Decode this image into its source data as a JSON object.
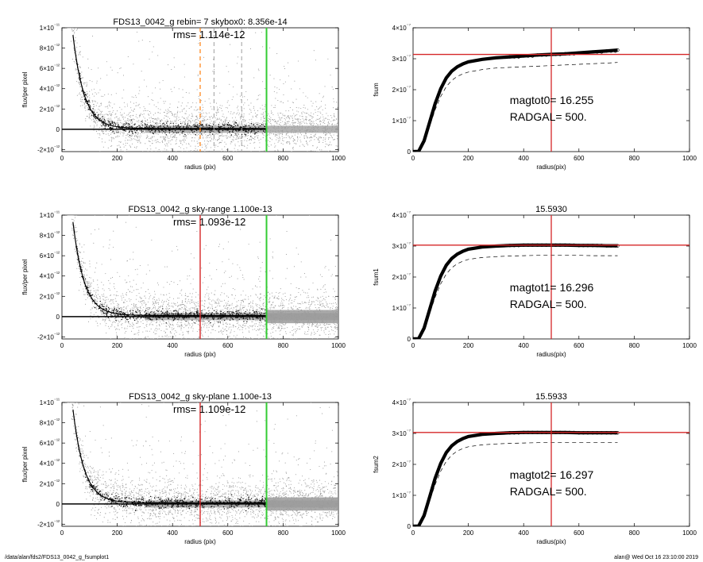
{
  "footer": {
    "left": "/data/alan/fds2/FDS13_0042_g_fsumplot1",
    "right": "alan@  Wed Oct 16 23:10:00 2019"
  },
  "colors": {
    "grey_points": "#9a9a9a",
    "black_points": "#111111",
    "red_line": "#d62728",
    "green_line": "#33cc33",
    "orange_dash": "#ff7f0e",
    "grey_dash": "#9e9e9e"
  },
  "chart_data": [
    {
      "type": "scatter",
      "panel": "left-1",
      "title": "FDS13_0042_g rebin= 7    skybox0:  8.356e-14",
      "annotation": "rms= 1.114e-12",
      "xlabel": "radius (pix)",
      "ylabel": "flux/per pixel",
      "xlim": [
        0,
        1000
      ],
      "ylim": [
        -2.2e-12,
        1e-11
      ],
      "xticks": [
        "0",
        "200",
        "400",
        "600",
        "800",
        "1000"
      ],
      "yticks": [
        {
          "value": 1e-11,
          "label": "1×10⁻¹¹"
        },
        {
          "value": 8e-12,
          "label": "8×10⁻¹²"
        },
        {
          "value": 6e-12,
          "label": "6×10⁻¹²"
        },
        {
          "value": 4e-12,
          "label": "4×10⁻¹²"
        },
        {
          "value": 2e-12,
          "label": "2×10⁻¹²"
        },
        {
          "value": 0,
          "label": "0"
        },
        {
          "value": -2e-12,
          "label": "-2×10⁻¹²"
        }
      ],
      "profile": {
        "amplitude": 2.5e-11,
        "scale": 40,
        "floor": 8e-14
      },
      "vlines": [
        {
          "x": 500,
          "style": "orange-dash"
        },
        {
          "x": 550,
          "style": "grey-dash"
        },
        {
          "x": 650,
          "style": "grey-dash"
        },
        {
          "x": 740,
          "style": "green"
        }
      ]
    },
    {
      "type": "line",
      "panel": "right-1",
      "title": "",
      "xlabel": "radius(pix)",
      "ylabel": "fsum",
      "xlim": [
        0,
        1000
      ],
      "ylim": [
        0,
        4e-07
      ],
      "xticks": [
        "0",
        "200",
        "400",
        "600",
        "800",
        "1000"
      ],
      "yticks": [
        {
          "value": 4e-07,
          "label": "4×10⁻⁷"
        },
        {
          "value": 3e-07,
          "label": "3×10⁻⁷"
        },
        {
          "value": 2e-07,
          "label": "2×10⁻⁷"
        },
        {
          "value": 1e-07,
          "label": "1×10⁻⁷"
        },
        {
          "value": 0,
          "label": "0"
        }
      ],
      "series": [
        {
          "style": "thick-black",
          "x": [
            0,
            20,
            40,
            60,
            80,
            100,
            120,
            140,
            160,
            180,
            200,
            250,
            300,
            350,
            400,
            450,
            500,
            550,
            600,
            650,
            700,
            740
          ],
          "y": [
            0,
            8e-10,
            3.5e-08,
            9.5e-08,
            1.55e-07,
            2.03e-07,
            2.38e-07,
            2.6e-07,
            2.74e-07,
            2.83e-07,
            2.9e-07,
            2.98e-07,
            3.03e-07,
            3.06e-07,
            3.09e-07,
            3.12e-07,
            3.14e-07,
            3.16e-07,
            3.19e-07,
            3.22e-07,
            3.25e-07,
            3.28e-07
          ]
        },
        {
          "style": "dashed",
          "x": [
            0,
            20,
            40,
            60,
            80,
            100,
            120,
            140,
            160,
            180,
            200,
            250,
            300,
            350,
            400,
            450,
            500,
            550,
            600,
            650,
            700,
            740
          ],
          "y": [
            0,
            5e-10,
            3e-08,
            8.2e-08,
            1.35e-07,
            1.78e-07,
            2.1e-07,
            2.3e-07,
            2.43e-07,
            2.51e-07,
            2.57e-07,
            2.65e-07,
            2.7e-07,
            2.72e-07,
            2.74e-07,
            2.76e-07,
            2.78e-07,
            2.8e-07,
            2.82e-07,
            2.84e-07,
            2.86e-07,
            2.88e-07
          ]
        }
      ],
      "hline": 3.14e-07,
      "vline": 500,
      "annotations": [
        "magtot0=  16.255",
        "RADGAL=    500."
      ]
    },
    {
      "type": "scatter",
      "panel": "left-2",
      "title": "FDS13_0042_g sky-range  1.100e-13",
      "annotation": "rms= 1.093e-12",
      "xlabel": "radius (pix)",
      "ylabel": "flux/per pixel",
      "xlim": [
        0,
        1000
      ],
      "ylim": [
        -2.2e-12,
        1e-11
      ],
      "xticks": [
        "0",
        "200",
        "400",
        "600",
        "800",
        "1000"
      ],
      "yticks": [
        {
          "value": 1e-11,
          "label": "1×10⁻¹¹"
        },
        {
          "value": 8e-12,
          "label": "8×10⁻¹²"
        },
        {
          "value": 6e-12,
          "label": "6×10⁻¹²"
        },
        {
          "value": 4e-12,
          "label": "4×10⁻¹²"
        },
        {
          "value": 2e-12,
          "label": "2×10⁻¹²"
        },
        {
          "value": 0,
          "label": "0"
        },
        {
          "value": -2e-12,
          "label": "-2×10⁻¹²"
        }
      ],
      "profile": {
        "amplitude": 2.5e-11,
        "scale": 40,
        "floor": 1.1e-13
      },
      "vlines": [
        {
          "x": 500,
          "style": "red"
        },
        {
          "x": 740,
          "style": "green"
        }
      ]
    },
    {
      "type": "line",
      "panel": "right-2",
      "title": "15.5930",
      "xlabel": "radius(pix)",
      "ylabel": "fsum1",
      "xlim": [
        0,
        1000
      ],
      "ylim": [
        0,
        4e-07
      ],
      "xticks": [
        "0",
        "200",
        "400",
        "600",
        "800",
        "1000"
      ],
      "yticks": [
        {
          "value": 4e-07,
          "label": "4×10⁻⁷"
        },
        {
          "value": 3e-07,
          "label": "3×10⁻⁷"
        },
        {
          "value": 2e-07,
          "label": "2×10⁻⁷"
        },
        {
          "value": 1e-07,
          "label": "1×10⁻⁷"
        },
        {
          "value": 0,
          "label": "0"
        }
      ],
      "series": [
        {
          "style": "thick-black",
          "x": [
            0,
            20,
            40,
            60,
            80,
            100,
            120,
            140,
            160,
            180,
            200,
            250,
            300,
            350,
            400,
            450,
            500,
            550,
            600,
            650,
            700,
            740
          ],
          "y": [
            0,
            8e-10,
            3.5e-08,
            9.5e-08,
            1.55e-07,
            2.03e-07,
            2.38e-07,
            2.6e-07,
            2.74e-07,
            2.83e-07,
            2.9e-07,
            2.97e-07,
            3e-07,
            3.02e-07,
            3.03e-07,
            3.03e-07,
            3.03e-07,
            3.03e-07,
            3.02e-07,
            3.02e-07,
            3.01e-07,
            3.01e-07
          ]
        },
        {
          "style": "dashed",
          "x": [
            0,
            20,
            40,
            60,
            80,
            100,
            120,
            140,
            160,
            180,
            200,
            250,
            300,
            350,
            400,
            450,
            500,
            550,
            600,
            650,
            700,
            740
          ],
          "y": [
            0,
            5e-10,
            3e-08,
            8.2e-08,
            1.35e-07,
            1.78e-07,
            2.1e-07,
            2.3e-07,
            2.43e-07,
            2.51e-07,
            2.57e-07,
            2.63e-07,
            2.66e-07,
            2.68e-07,
            2.69e-07,
            2.7e-07,
            2.7e-07,
            2.7e-07,
            2.7e-07,
            2.69e-07,
            2.69e-07,
            2.69e-07
          ]
        }
      ],
      "hline": 3.03e-07,
      "vline": 500,
      "annotations": [
        "magtot1=  16.296",
        "RADGAL=    500."
      ]
    },
    {
      "type": "scatter",
      "panel": "left-3",
      "title": "FDS13_0042_g sky-plane  1.100e-13",
      "annotation": "rms= 1.109e-12",
      "xlabel": "radius (pix)",
      "ylabel": "flux/per pixel",
      "xlim": [
        0,
        1000
      ],
      "ylim": [
        -2.2e-12,
        1e-11
      ],
      "xticks": [
        "0",
        "200",
        "400",
        "600",
        "800",
        "1000"
      ],
      "yticks": [
        {
          "value": 1e-11,
          "label": "1×10⁻¹¹"
        },
        {
          "value": 8e-12,
          "label": "8×10⁻¹²"
        },
        {
          "value": 6e-12,
          "label": "6×10⁻¹²"
        },
        {
          "value": 4e-12,
          "label": "4×10⁻¹²"
        },
        {
          "value": 2e-12,
          "label": "2×10⁻¹²"
        },
        {
          "value": 0,
          "label": "0"
        },
        {
          "value": -2e-12,
          "label": "-2×10⁻¹²"
        }
      ],
      "profile": {
        "amplitude": 2.5e-11,
        "scale": 40,
        "floor": 1.1e-13
      },
      "vlines": [
        {
          "x": 500,
          "style": "red"
        },
        {
          "x": 740,
          "style": "green"
        }
      ]
    },
    {
      "type": "line",
      "panel": "right-3",
      "title": "15.5933",
      "xlabel": "radius(pix)",
      "ylabel": "fsum2",
      "xlim": [
        0,
        1000
      ],
      "ylim": [
        0,
        4e-07
      ],
      "xticks": [
        "0",
        "200",
        "400",
        "600",
        "800",
        "1000"
      ],
      "yticks": [
        {
          "value": 4e-07,
          "label": "4×10⁻⁷"
        },
        {
          "value": 3e-07,
          "label": "3×10⁻⁷"
        },
        {
          "value": 2e-07,
          "label": "2×10⁻⁷"
        },
        {
          "value": 1e-07,
          "label": "1×10⁻⁷"
        },
        {
          "value": 0,
          "label": "0"
        }
      ],
      "series": [
        {
          "style": "thick-black",
          "x": [
            0,
            20,
            40,
            60,
            80,
            100,
            120,
            140,
            160,
            180,
            200,
            250,
            300,
            350,
            400,
            450,
            500,
            550,
            600,
            650,
            700,
            740
          ],
          "y": [
            0,
            8e-10,
            3.5e-08,
            9.5e-08,
            1.55e-07,
            2.03e-07,
            2.38e-07,
            2.6e-07,
            2.74e-07,
            2.83e-07,
            2.9e-07,
            2.97e-07,
            3e-07,
            3.02e-07,
            3.03e-07,
            3.03e-07,
            3.03e-07,
            3.03e-07,
            3.02e-07,
            3.02e-07,
            3.02e-07,
            3.02e-07
          ]
        },
        {
          "style": "dashed",
          "x": [
            0,
            20,
            40,
            60,
            80,
            100,
            120,
            140,
            160,
            180,
            200,
            250,
            300,
            350,
            400,
            450,
            500,
            550,
            600,
            650,
            700,
            740
          ],
          "y": [
            0,
            5e-10,
            3e-08,
            8.2e-08,
            1.35e-07,
            1.78e-07,
            2.1e-07,
            2.3e-07,
            2.43e-07,
            2.51e-07,
            2.57e-07,
            2.63e-07,
            2.66e-07,
            2.68e-07,
            2.69e-07,
            2.7e-07,
            2.7e-07,
            2.7e-07,
            2.7e-07,
            2.7e-07,
            2.7e-07,
            2.7e-07
          ]
        }
      ],
      "hline": 3.03e-07,
      "vline": 500,
      "annotations": [
        "magtot2=  16.297",
        "RADGAL=    500."
      ]
    }
  ]
}
